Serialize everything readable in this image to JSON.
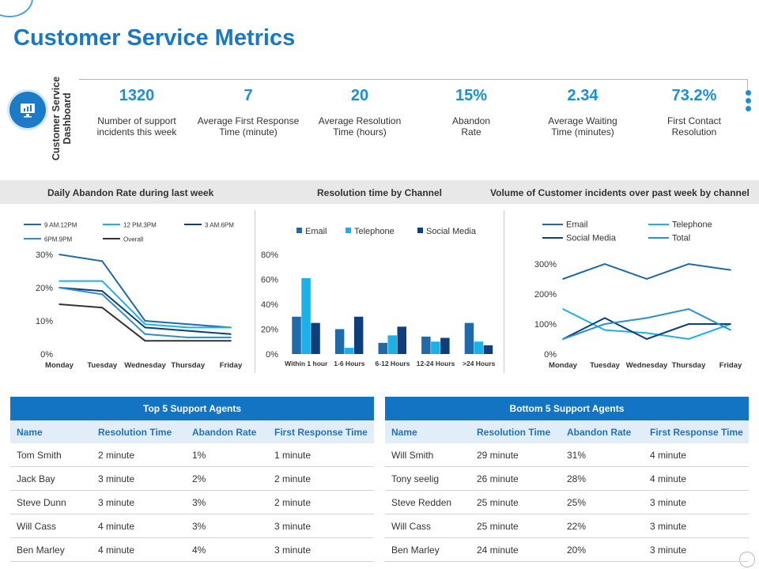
{
  "page_title": "Customer Service Metrics",
  "dashboard_label": "Customer Service Dashboard",
  "kpis": [
    {
      "value": "1320",
      "label": "Number of support incidents this week"
    },
    {
      "value": "7",
      "label": "Average First Response Time (minute)"
    },
    {
      "value": "20",
      "label": "Average Resolution Time (hours)"
    },
    {
      "value": "15%",
      "label": "Abandon Rate"
    },
    {
      "value": "2.34",
      "label": "Average Waiting Time (minutes)"
    },
    {
      "value": "73.2%",
      "label": "First Contact Resolution"
    }
  ],
  "section_titles": {
    "abandon": "Daily Abandon Rate during last week",
    "resolution": "Resolution time by Channel",
    "volume": "Volume of Customer incidents over past week by channel"
  },
  "colors": {
    "dark": "#1f4e8c",
    "mid": "#1f77b4",
    "light": "#1cb0e8",
    "accent": "#1474c4",
    "overall": "#333333"
  },
  "chart_data": [
    {
      "type": "line",
      "title": "Daily Abandon Rate during last week",
      "categories": [
        "Monday",
        "Tuesday",
        "Wednesday",
        "Thursday",
        "Friday"
      ],
      "y_ticks": [
        "0%",
        "10%",
        "20%",
        "30%"
      ],
      "ylim": [
        0,
        30
      ],
      "series": [
        {
          "name": "9 AM.12PM",
          "color": "#1f6aa8",
          "values": [
            30,
            28,
            10,
            9,
            8
          ]
        },
        {
          "name": "12 PM.3PM",
          "color": "#1cb0e8",
          "values": [
            22,
            22,
            9,
            8,
            8
          ]
        },
        {
          "name": "3 AM.6PM",
          "color": "#0e3f7a",
          "values": [
            20,
            19,
            8,
            7,
            6
          ]
        },
        {
          "name": "6PM.9PM",
          "color": "#2a8fd0",
          "values": [
            20,
            18,
            6,
            5,
            5
          ]
        },
        {
          "name": "Overall",
          "color": "#333333",
          "values": [
            15,
            14,
            4,
            4,
            4
          ]
        }
      ]
    },
    {
      "type": "bar",
      "title": "Resolution time by Channel",
      "categories": [
        "Within 1 hour",
        "1-6 Hours",
        "6-12 Hours",
        "12-24 Hours",
        ">24 Hours"
      ],
      "y_ticks": [
        "0%",
        "20%",
        "40%",
        "60%",
        "80%"
      ],
      "ylim": [
        0,
        80
      ],
      "series": [
        {
          "name": "Email",
          "color": "#1f6aa8",
          "values": [
            30,
            20,
            9,
            14,
            25
          ]
        },
        {
          "name": "Telephone",
          "color": "#1cb0e8",
          "values": [
            61,
            5,
            15,
            10,
            10
          ]
        },
        {
          "name": "Social Media",
          "color": "#0e3f7a",
          "values": [
            25,
            30,
            22,
            13,
            7
          ]
        }
      ]
    },
    {
      "type": "line",
      "title": "Volume of Customer incidents over past week by channel",
      "categories": [
        "Monday",
        "Tuesday",
        "Wednesday",
        "Thursday",
        "Friday"
      ],
      "y_ticks": [
        "0%",
        "100%",
        "200%",
        "300%"
      ],
      "ylim": [
        0,
        300
      ],
      "series": [
        {
          "name": "Email",
          "color": "#1f6aa8",
          "values": [
            250,
            300,
            250,
            300,
            280
          ]
        },
        {
          "name": "Telephone",
          "color": "#1cb0e8",
          "values": [
            150,
            80,
            70,
            50,
            100
          ]
        },
        {
          "name": "Social Media",
          "color": "#0e3f7a",
          "values": [
            50,
            120,
            50,
            100,
            100
          ]
        },
        {
          "name": "Total",
          "color": "#2a8fd0",
          "values": [
            50,
            100,
            120,
            150,
            80
          ]
        }
      ]
    }
  ],
  "top_agents": {
    "caption": "Top 5 Support Agents",
    "columns": [
      "Name",
      "Resolution Time",
      "Abandon Rate",
      "First Response Time"
    ],
    "rows": [
      [
        "Tom Smith",
        "2 minute",
        "1%",
        "1 minute"
      ],
      [
        "Jack Bay",
        "3 minute",
        "2%",
        "2 minute"
      ],
      [
        "Steve Dunn",
        "3 minute",
        "3%",
        "2 minute"
      ],
      [
        "Will Cass",
        "4 minute",
        "3%",
        "3 minute"
      ],
      [
        "Ben Marley",
        "4 minute",
        "4%",
        "3 minute"
      ]
    ]
  },
  "bottom_agents": {
    "caption": "Bottom 5 Support Agents",
    "columns": [
      "Name",
      "Resolution Time",
      "Abandon Rate",
      "First Response Time"
    ],
    "rows": [
      [
        "Will Smith",
        "29 minute",
        "31%",
        "4 minute"
      ],
      [
        "Tony seelig",
        "26 minute",
        "28%",
        "4 minute"
      ],
      [
        "Steve Redden",
        "25 minute",
        "25%",
        "3 minute"
      ],
      [
        "Will Cass",
        "25 minute",
        "22%",
        "3 minute"
      ],
      [
        "Ben Marley",
        "24 minute",
        "20%",
        "3 minute"
      ]
    ]
  }
}
